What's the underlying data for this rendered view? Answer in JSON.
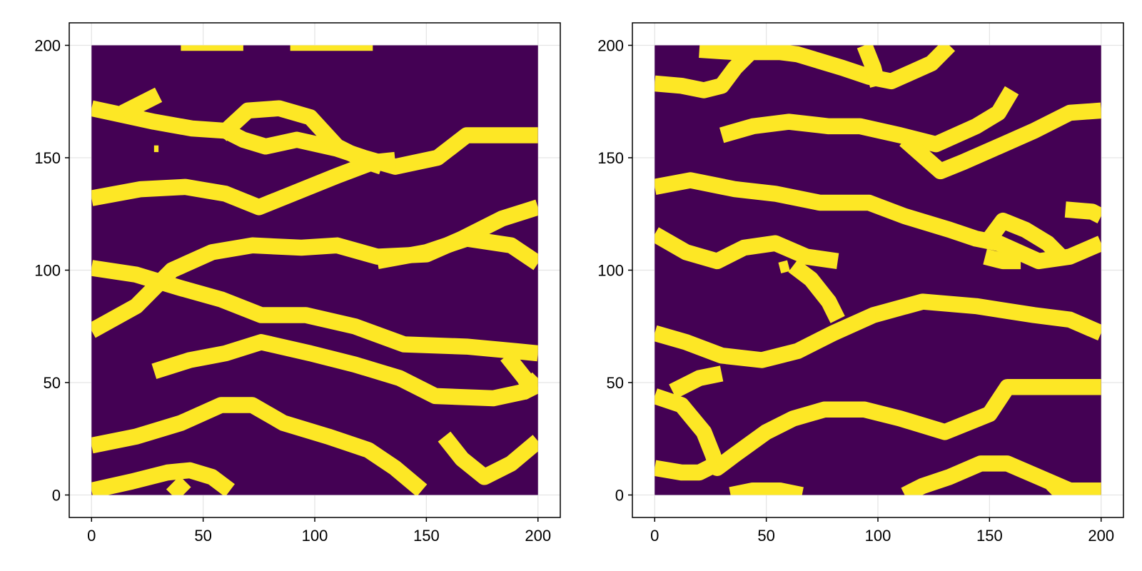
{
  "chart_data": [
    {
      "type": "heatmap",
      "title": "",
      "xlabel": "",
      "ylabel": "",
      "xlim": [
        -10,
        210
      ],
      "ylim": [
        -10,
        210
      ],
      "data_extent": {
        "x": [
          0,
          200
        ],
        "y": [
          0,
          200
        ]
      },
      "xticks": [
        0,
        50,
        100,
        150,
        200
      ],
      "yticks": [
        0,
        50,
        100,
        150,
        200
      ],
      "xtick_labels": [
        "0",
        "50",
        "100",
        "150",
        "200"
      ],
      "ytick_labels": [
        "0",
        "50",
        "100",
        "150",
        "200"
      ],
      "grid": true,
      "values": [
        0,
        1
      ],
      "colors": {
        "0": "#440154",
        "1": "#fde725"
      },
      "channels": [
        [
          [
            0,
            172
          ],
          [
            14,
            169
          ],
          [
            28,
            166
          ],
          [
            45,
            163
          ],
          [
            60,
            162
          ],
          [
            68,
            158
          ],
          [
            78,
            155
          ],
          [
            92,
            158
          ],
          [
            110,
            154
          ],
          [
            122,
            150
          ],
          [
            136,
            146
          ],
          [
            155,
            150
          ],
          [
            168,
            160
          ],
          [
            185,
            160
          ],
          [
            200,
            160
          ]
        ],
        [
          [
            14,
            170
          ],
          [
            24,
            175
          ],
          [
            30,
            178
          ]
        ],
        [
          [
            58,
            160
          ],
          [
            70,
            171
          ],
          [
            84,
            172
          ],
          [
            98,
            168
          ],
          [
            110,
            155
          ],
          [
            124,
            148
          ],
          [
            130,
            146
          ]
        ],
        [
          [
            0,
            132
          ],
          [
            22,
            136
          ],
          [
            42,
            137
          ],
          [
            60,
            134
          ],
          [
            75,
            128
          ],
          [
            90,
            134
          ],
          [
            110,
            142
          ],
          [
            126,
            148
          ],
          [
            136,
            149
          ]
        ],
        [
          [
            0,
            101
          ],
          [
            20,
            98
          ],
          [
            40,
            92
          ],
          [
            58,
            87
          ],
          [
            76,
            80
          ],
          [
            96,
            80
          ],
          [
            118,
            75
          ],
          [
            140,
            67
          ],
          [
            168,
            66
          ],
          [
            190,
            64
          ],
          [
            200,
            63
          ]
        ],
        [
          [
            0,
            73
          ],
          [
            20,
            84
          ],
          [
            36,
            100
          ],
          [
            54,
            108
          ],
          [
            72,
            111
          ],
          [
            94,
            110
          ],
          [
            110,
            111
          ],
          [
            128,
            106
          ],
          [
            150,
            107
          ],
          [
            166,
            114
          ],
          [
            184,
            123
          ],
          [
            200,
            128
          ]
        ],
        [
          [
            128,
            104
          ],
          [
            150,
            108
          ],
          [
            168,
            114
          ],
          [
            188,
            111
          ],
          [
            200,
            103
          ]
        ],
        [
          [
            28,
            55
          ],
          [
            44,
            60
          ],
          [
            60,
            63
          ],
          [
            76,
            68
          ],
          [
            98,
            63
          ],
          [
            118,
            58
          ],
          [
            138,
            52
          ],
          [
            154,
            44
          ],
          [
            180,
            43
          ],
          [
            194,
            46
          ],
          [
            200,
            52
          ]
        ],
        [
          [
            186,
            62
          ],
          [
            194,
            52
          ],
          [
            198,
            44
          ]
        ],
        [
          [
            0,
            22
          ],
          [
            20,
            26
          ],
          [
            40,
            32
          ],
          [
            58,
            40
          ],
          [
            72,
            40
          ],
          [
            86,
            32
          ],
          [
            106,
            26
          ],
          [
            124,
            20
          ],
          [
            136,
            12
          ],
          [
            148,
            2
          ]
        ],
        [
          [
            0,
            2
          ],
          [
            18,
            6
          ],
          [
            34,
            10
          ],
          [
            44,
            11
          ],
          [
            54,
            8
          ],
          [
            62,
            2
          ]
        ],
        [
          [
            36,
            0
          ],
          [
            42,
            6
          ]
        ],
        [
          [
            158,
            26
          ],
          [
            166,
            16
          ],
          [
            176,
            8
          ],
          [
            188,
            14
          ],
          [
            200,
            24
          ]
        ]
      ],
      "cells": [
        [
          [
            40,
            200
          ],
          [
            68,
            200
          ]
        ],
        [
          [
            89,
            200
          ],
          [
            126,
            200
          ]
        ],
        [
          [
            29,
            154
          ]
        ]
      ]
    },
    {
      "type": "heatmap",
      "title": "",
      "xlabel": "",
      "ylabel": "",
      "xlim": [
        -10,
        210
      ],
      "ylim": [
        -10,
        210
      ],
      "data_extent": {
        "x": [
          0,
          200
        ],
        "y": [
          0,
          200
        ]
      },
      "xticks": [
        0,
        50,
        100,
        150,
        200
      ],
      "yticks": [
        0,
        50,
        100,
        150,
        200
      ],
      "xtick_labels": [
        "0",
        "50",
        "100",
        "150",
        "200"
      ],
      "ytick_labels": [
        "0",
        "50",
        "100",
        "150",
        "200"
      ],
      "grid": true,
      "values": [
        0,
        1
      ],
      "colors": {
        "0": "#440154",
        "1": "#fde725"
      },
      "channels": [
        [
          [
            0,
            183
          ],
          [
            12,
            182
          ],
          [
            22,
            180
          ],
          [
            30,
            182
          ],
          [
            36,
            190
          ],
          [
            44,
            198
          ],
          [
            50,
            200
          ]
        ],
        [
          [
            20,
            198
          ],
          [
            36,
            197
          ],
          [
            56,
            197
          ],
          [
            64,
            196
          ],
          [
            84,
            190
          ],
          [
            96,
            186
          ],
          [
            106,
            184
          ],
          [
            124,
            192
          ],
          [
            132,
            200
          ]
        ],
        [
          [
            100,
            182
          ],
          [
            98,
            190
          ],
          [
            94,
            200
          ]
        ],
        [
          [
            30,
            160
          ],
          [
            44,
            164
          ],
          [
            60,
            166
          ],
          [
            78,
            164
          ],
          [
            92,
            164
          ],
          [
            110,
            160
          ],
          [
            126,
            156
          ],
          [
            144,
            164
          ],
          [
            154,
            170
          ],
          [
            160,
            180
          ]
        ],
        [
          [
            112,
            158
          ],
          [
            128,
            144
          ],
          [
            138,
            148
          ],
          [
            154,
            155
          ],
          [
            170,
            162
          ],
          [
            186,
            170
          ],
          [
            200,
            171
          ]
        ],
        [
          [
            0,
            137
          ],
          [
            16,
            140
          ],
          [
            36,
            136
          ],
          [
            54,
            134
          ],
          [
            74,
            130
          ],
          [
            96,
            130
          ],
          [
            112,
            124
          ],
          [
            132,
            118
          ],
          [
            144,
            114
          ],
          [
            154,
            112
          ],
          [
            172,
            104
          ],
          [
            186,
            106
          ],
          [
            200,
            112
          ]
        ],
        [
          [
            150,
            114
          ],
          [
            156,
            122
          ],
          [
            166,
            118
          ],
          [
            176,
            112
          ],
          [
            182,
            106
          ]
        ],
        [
          [
            148,
            106
          ],
          [
            156,
            104
          ],
          [
            164,
            104
          ]
        ],
        [
          [
            184,
            127
          ],
          [
            196,
            126
          ],
          [
            200,
            124
          ]
        ],
        [
          [
            0,
            116
          ],
          [
            14,
            108
          ],
          [
            28,
            104
          ],
          [
            40,
            110
          ],
          [
            54,
            112
          ],
          [
            68,
            106
          ],
          [
            82,
            104
          ]
        ],
        [
          [
            62,
            102
          ],
          [
            70,
            96
          ],
          [
            78,
            86
          ],
          [
            82,
            78
          ]
        ],
        [
          [
            0,
            72
          ],
          [
            14,
            68
          ],
          [
            30,
            62
          ],
          [
            48,
            60
          ],
          [
            64,
            64
          ],
          [
            80,
            72
          ],
          [
            98,
            80
          ],
          [
            120,
            86
          ],
          [
            144,
            84
          ],
          [
            170,
            80
          ],
          [
            186,
            78
          ],
          [
            200,
            72
          ]
        ],
        [
          [
            0,
            44
          ],
          [
            12,
            40
          ],
          [
            22,
            28
          ],
          [
            26,
            18
          ],
          [
            28,
            12
          ],
          [
            36,
            18
          ],
          [
            50,
            28
          ],
          [
            62,
            34
          ],
          [
            76,
            38
          ],
          [
            94,
            38
          ],
          [
            110,
            34
          ],
          [
            130,
            28
          ],
          [
            150,
            36
          ],
          [
            158,
            48
          ],
          [
            168,
            48
          ],
          [
            186,
            48
          ],
          [
            200,
            48
          ]
        ],
        [
          [
            8,
            46
          ],
          [
            20,
            52
          ],
          [
            30,
            54
          ]
        ],
        [
          [
            0,
            12
          ],
          [
            12,
            10
          ],
          [
            20,
            10
          ],
          [
            28,
            14
          ]
        ],
        [
          [
            34,
            0
          ],
          [
            44,
            2
          ],
          [
            56,
            2
          ],
          [
            66,
            0
          ]
        ],
        [
          [
            112,
            0
          ],
          [
            120,
            4
          ],
          [
            132,
            8
          ],
          [
            146,
            14
          ],
          [
            158,
            14
          ],
          [
            172,
            8
          ],
          [
            186,
            2
          ],
          [
            200,
            2
          ]
        ],
        [
          [
            178,
            0
          ],
          [
            182,
            4
          ]
        ]
      ],
      "cells": [
        [
          [
            56,
            101
          ],
          [
            60,
            102
          ]
        ],
        [
          [
            100,
            80
          ]
        ]
      ]
    }
  ]
}
